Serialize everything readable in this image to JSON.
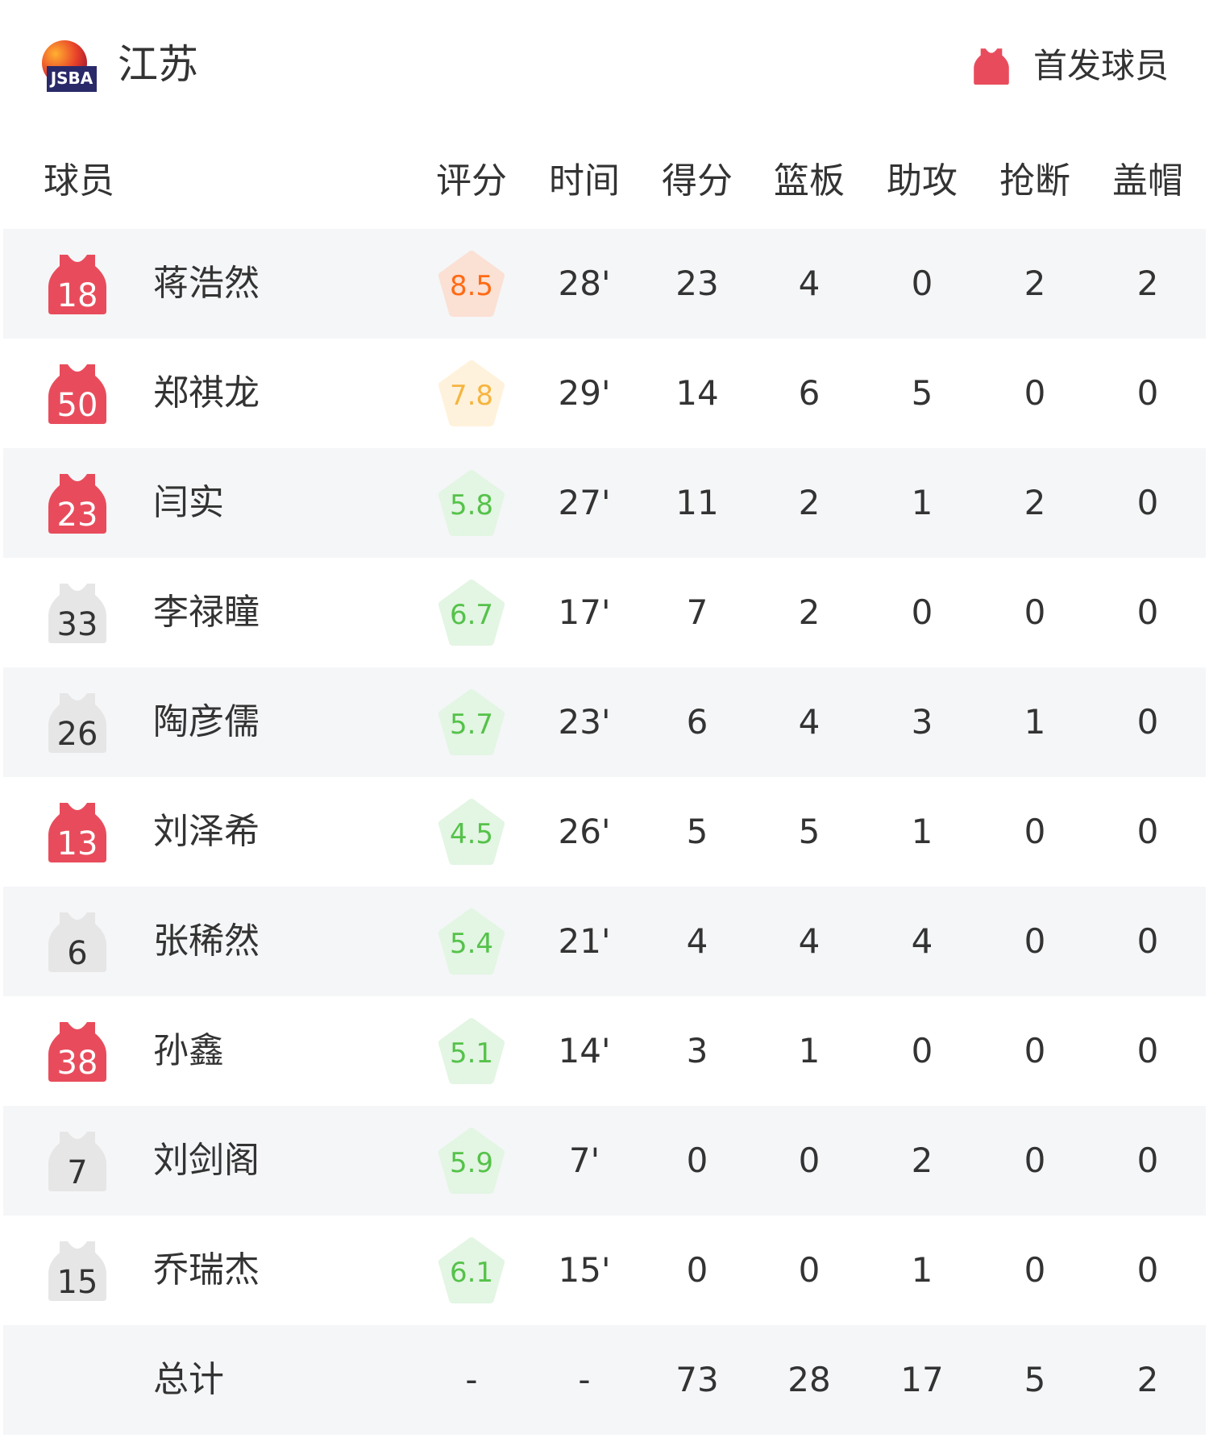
{
  "header": {
    "team_name": "江苏",
    "logo_text": "JSBA",
    "legend_label": "首发球员",
    "starter_color": "#e84c5c",
    "bench_color": "#e6e6e6"
  },
  "columns": [
    "球员",
    "评分",
    "时间",
    "得分",
    "篮板",
    "助攻",
    "抢断",
    "盖帽"
  ],
  "players": [
    {
      "number": "18",
      "name": "蒋浩然",
      "starter": true,
      "rating": "8.5",
      "tier": "high",
      "time": "28'",
      "pts": "23",
      "reb": "4",
      "ast": "0",
      "stl": "2",
      "blk": "2"
    },
    {
      "number": "50",
      "name": "郑祺龙",
      "starter": true,
      "rating": "7.8",
      "tier": "mid",
      "time": "29'",
      "pts": "14",
      "reb": "6",
      "ast": "5",
      "stl": "0",
      "blk": "0"
    },
    {
      "number": "23",
      "name": "闫实",
      "starter": true,
      "rating": "5.8",
      "tier": "low",
      "time": "27'",
      "pts": "11",
      "reb": "2",
      "ast": "1",
      "stl": "2",
      "blk": "0"
    },
    {
      "number": "33",
      "name": "李禄瞳",
      "starter": false,
      "rating": "6.7",
      "tier": "low",
      "time": "17'",
      "pts": "7",
      "reb": "2",
      "ast": "0",
      "stl": "0",
      "blk": "0"
    },
    {
      "number": "26",
      "name": "陶彦儒",
      "starter": false,
      "rating": "5.7",
      "tier": "low",
      "time": "23'",
      "pts": "6",
      "reb": "4",
      "ast": "3",
      "stl": "1",
      "blk": "0"
    },
    {
      "number": "13",
      "name": "刘泽希",
      "starter": true,
      "rating": "4.5",
      "tier": "low",
      "time": "26'",
      "pts": "5",
      "reb": "5",
      "ast": "1",
      "stl": "0",
      "blk": "0"
    },
    {
      "number": "6",
      "name": "张稀然",
      "starter": false,
      "rating": "5.4",
      "tier": "low",
      "time": "21'",
      "pts": "4",
      "reb": "4",
      "ast": "4",
      "stl": "0",
      "blk": "0"
    },
    {
      "number": "38",
      "name": "孙鑫",
      "starter": true,
      "rating": "5.1",
      "tier": "low",
      "time": "14'",
      "pts": "3",
      "reb": "1",
      "ast": "0",
      "stl": "0",
      "blk": "0"
    },
    {
      "number": "7",
      "name": "刘剑阁",
      "starter": false,
      "rating": "5.9",
      "tier": "low",
      "time": "7'",
      "pts": "0",
      "reb": "0",
      "ast": "2",
      "stl": "0",
      "blk": "0"
    },
    {
      "number": "15",
      "name": "乔瑞杰",
      "starter": false,
      "rating": "6.1",
      "tier": "low",
      "time": "15'",
      "pts": "0",
      "reb": "0",
      "ast": "1",
      "stl": "0",
      "blk": "0"
    }
  ],
  "totals": {
    "label": "总计",
    "rating": "-",
    "time": "-",
    "pts": "73",
    "reb": "28",
    "ast": "17",
    "stl": "5",
    "blk": "2"
  },
  "rating_colors": {
    "high": {
      "text": "#ff6a13",
      "bg": "#fbe0d4"
    },
    "mid": {
      "text": "#f5b53f",
      "bg": "#fff2dc"
    },
    "low": {
      "text": "#55c24a",
      "bg": "#e3f5e3"
    }
  }
}
